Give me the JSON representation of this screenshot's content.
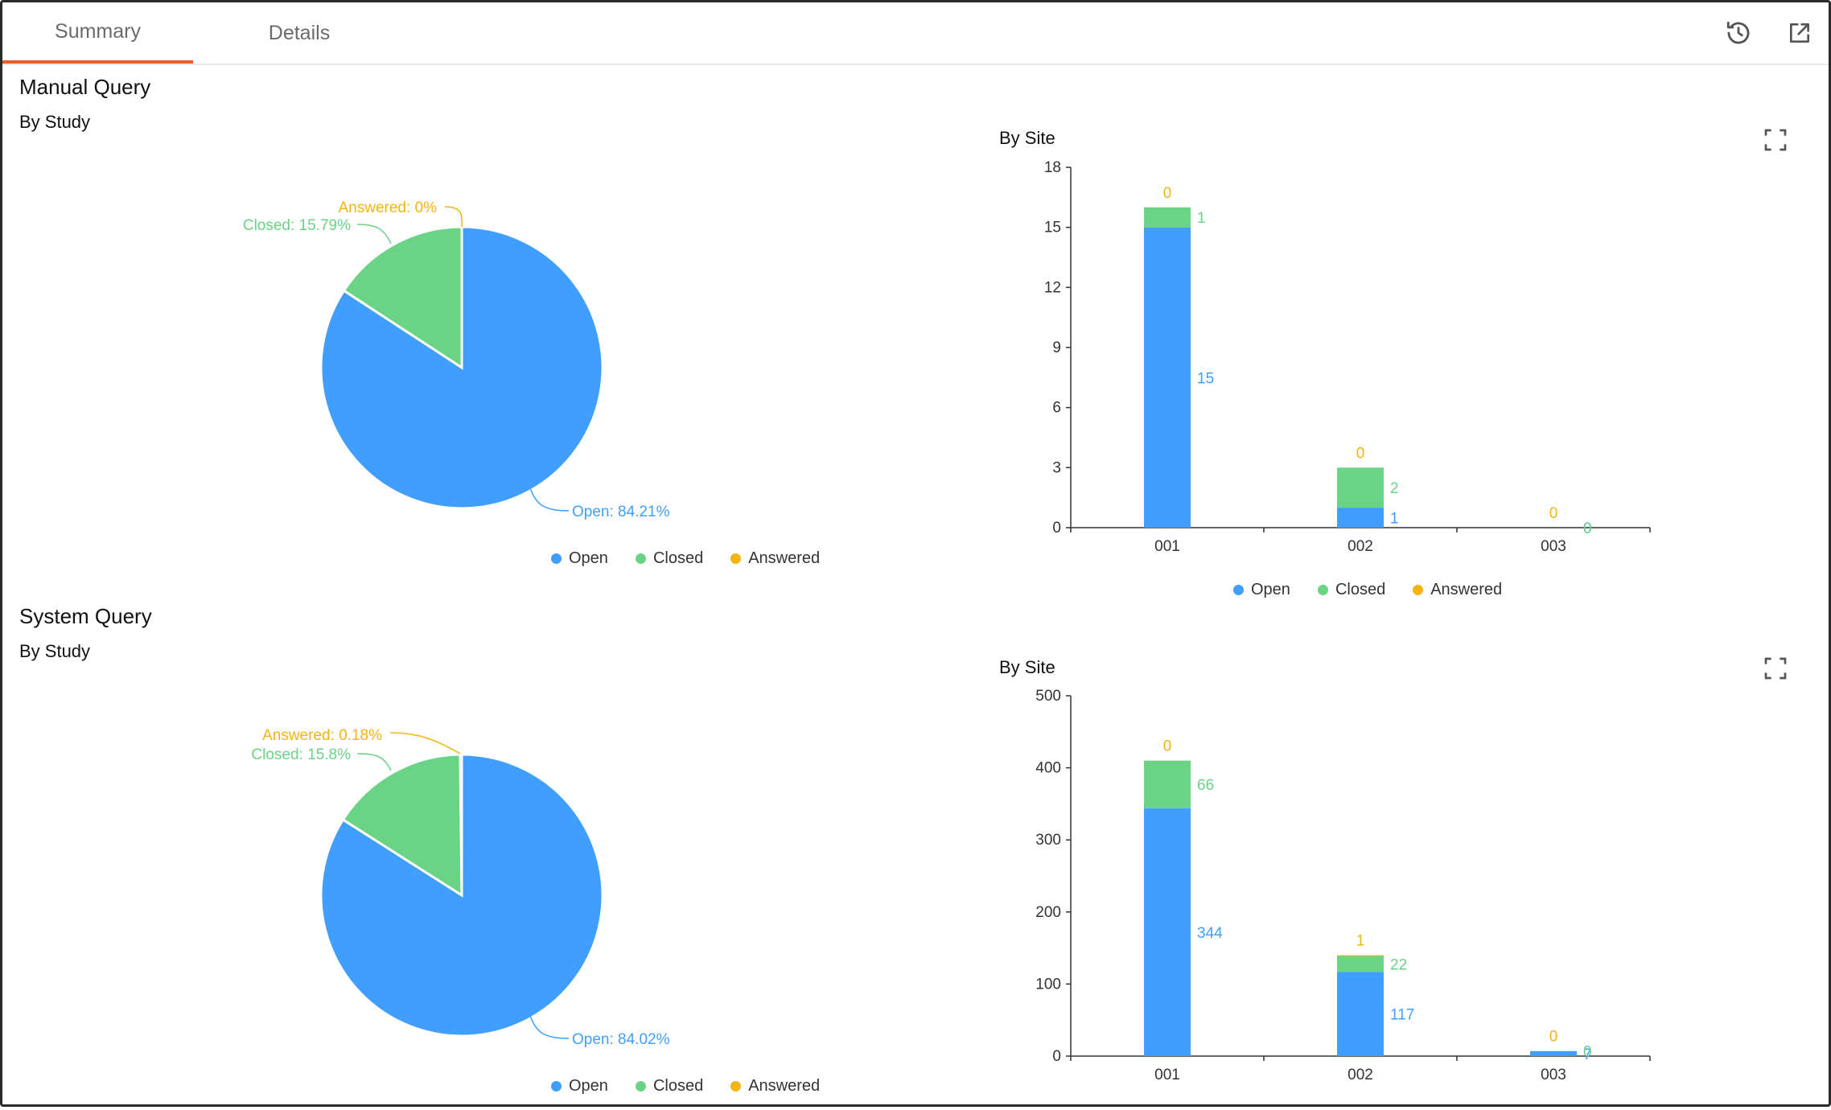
{
  "tabs": {
    "summary": "Summary",
    "details": "Details"
  },
  "icons": {
    "history": "history-icon",
    "open": "open-external-icon",
    "expand": "fullscreen-icon"
  },
  "colors": {
    "open": "#409eff",
    "closed": "#6bd385",
    "answered": "#f5b412",
    "accent": "#f15a24"
  },
  "legend": {
    "open": "Open",
    "closed": "Closed",
    "answered": "Answered"
  },
  "manual": {
    "title": "Manual Query",
    "by_study": "By Study",
    "by_site": "By Site",
    "pie_labels": {
      "open": "Open: 84.21%",
      "closed": "Closed: 15.79%",
      "answered": "Answered: 0%"
    }
  },
  "system": {
    "title": "System Query",
    "by_study": "By Study",
    "by_site": "By Site",
    "pie_labels": {
      "open": "Open: 84.02%",
      "closed": "Closed: 15.8%",
      "answered": "Answered: 0.18%"
    }
  },
  "chart_data": [
    {
      "type": "pie",
      "title": "By Study",
      "categories": [
        "Open",
        "Closed",
        "Answered"
      ],
      "values": [
        84.21,
        15.79,
        0
      ]
    },
    {
      "type": "bar",
      "title": "By Site",
      "stacked": true,
      "categories": [
        "001",
        "002",
        "003"
      ],
      "series": [
        {
          "name": "Open",
          "values": [
            15,
            1,
            0
          ]
        },
        {
          "name": "Closed",
          "values": [
            1,
            2,
            0
          ]
        },
        {
          "name": "Answered",
          "values": [
            0,
            0,
            0
          ]
        }
      ],
      "ylim": [
        0,
        18
      ],
      "yticks": [
        0,
        3,
        6,
        9,
        12,
        15,
        18
      ],
      "legend": "bottom"
    },
    {
      "type": "pie",
      "title": "By Study",
      "categories": [
        "Open",
        "Closed",
        "Answered"
      ],
      "values": [
        84.02,
        15.8,
        0.18
      ]
    },
    {
      "type": "bar",
      "title": "By Site",
      "stacked": true,
      "categories": [
        "001",
        "002",
        "003"
      ],
      "series": [
        {
          "name": "Open",
          "values": [
            344,
            117,
            7
          ]
        },
        {
          "name": "Closed",
          "values": [
            66,
            22,
            0
          ]
        },
        {
          "name": "Answered",
          "values": [
            0,
            1,
            0
          ]
        }
      ],
      "ylim": [
        0,
        500
      ],
      "yticks": [
        0,
        100,
        200,
        300,
        400,
        500
      ],
      "legend": "bottom"
    }
  ]
}
